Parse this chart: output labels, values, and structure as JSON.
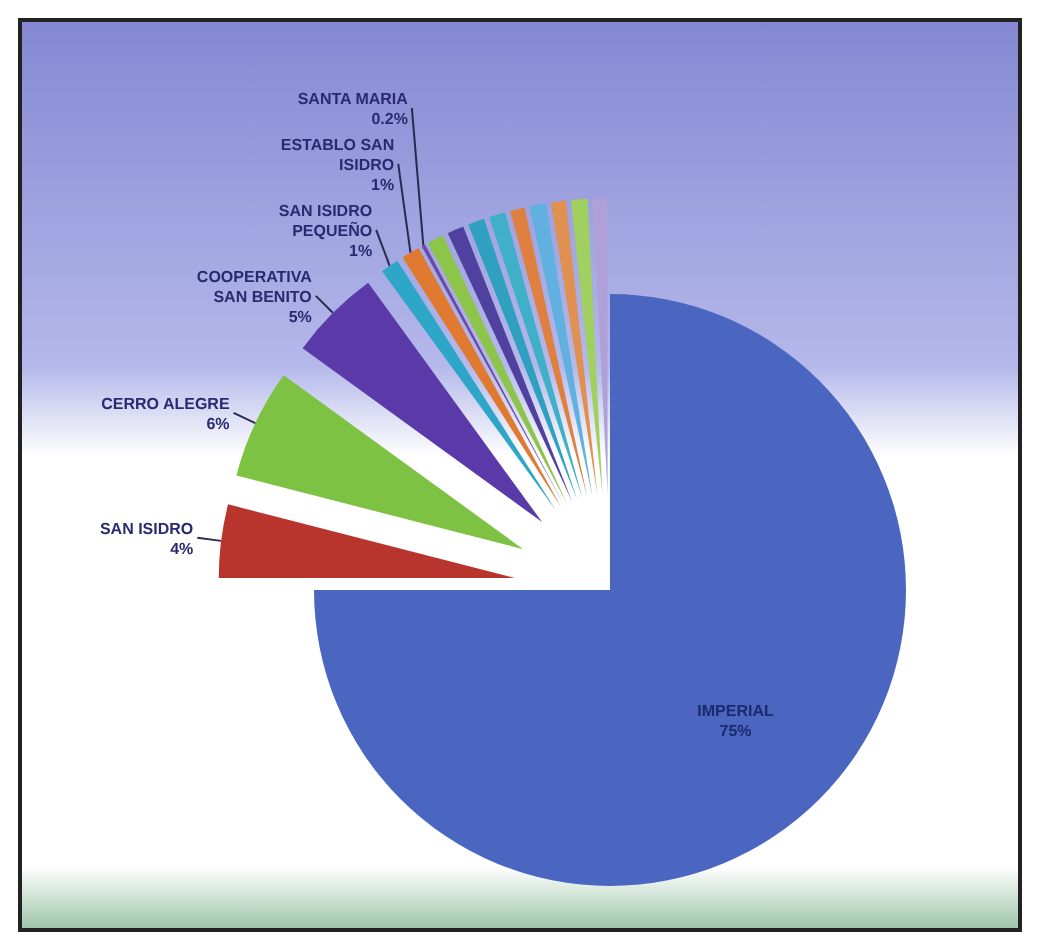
{
  "chart_data": {
    "type": "pie",
    "categories": [
      "IMPERIAL",
      "SAN ISIDRO",
      "CERRO ALEGRE",
      "COOPERATIVA SAN BENITO",
      "SAN ISIDRO PEQUEÑO",
      "ESTABLO SAN ISIDRO",
      "SANTA MARIA",
      null,
      null,
      null,
      null,
      null,
      null,
      null,
      null,
      null
    ],
    "values": [
      75,
      4,
      6,
      5,
      1,
      1,
      0.2,
      0.9,
      0.9,
      0.9,
      0.9,
      0.8,
      0.9,
      0.8,
      0.9,
      0.8
    ],
    "value_labels": [
      "75%",
      "4%",
      "6%",
      "5%",
      "1%",
      "1%",
      "0.2%",
      null,
      null,
      null,
      null,
      null,
      null,
      null,
      null,
      null
    ],
    "colors": [
      "#4a66c0",
      "#b8352e",
      "#7dc242",
      "#5a3aa8",
      "#2ea6c8",
      "#e07a30",
      "#6a4aa8",
      "#8dc44a",
      "#5040a0",
      "#30a0c0",
      "#40b0c8",
      "#e08040",
      "#60b0e0",
      "#e09050",
      "#a0d060",
      "#b0a0d8"
    ]
  }
}
